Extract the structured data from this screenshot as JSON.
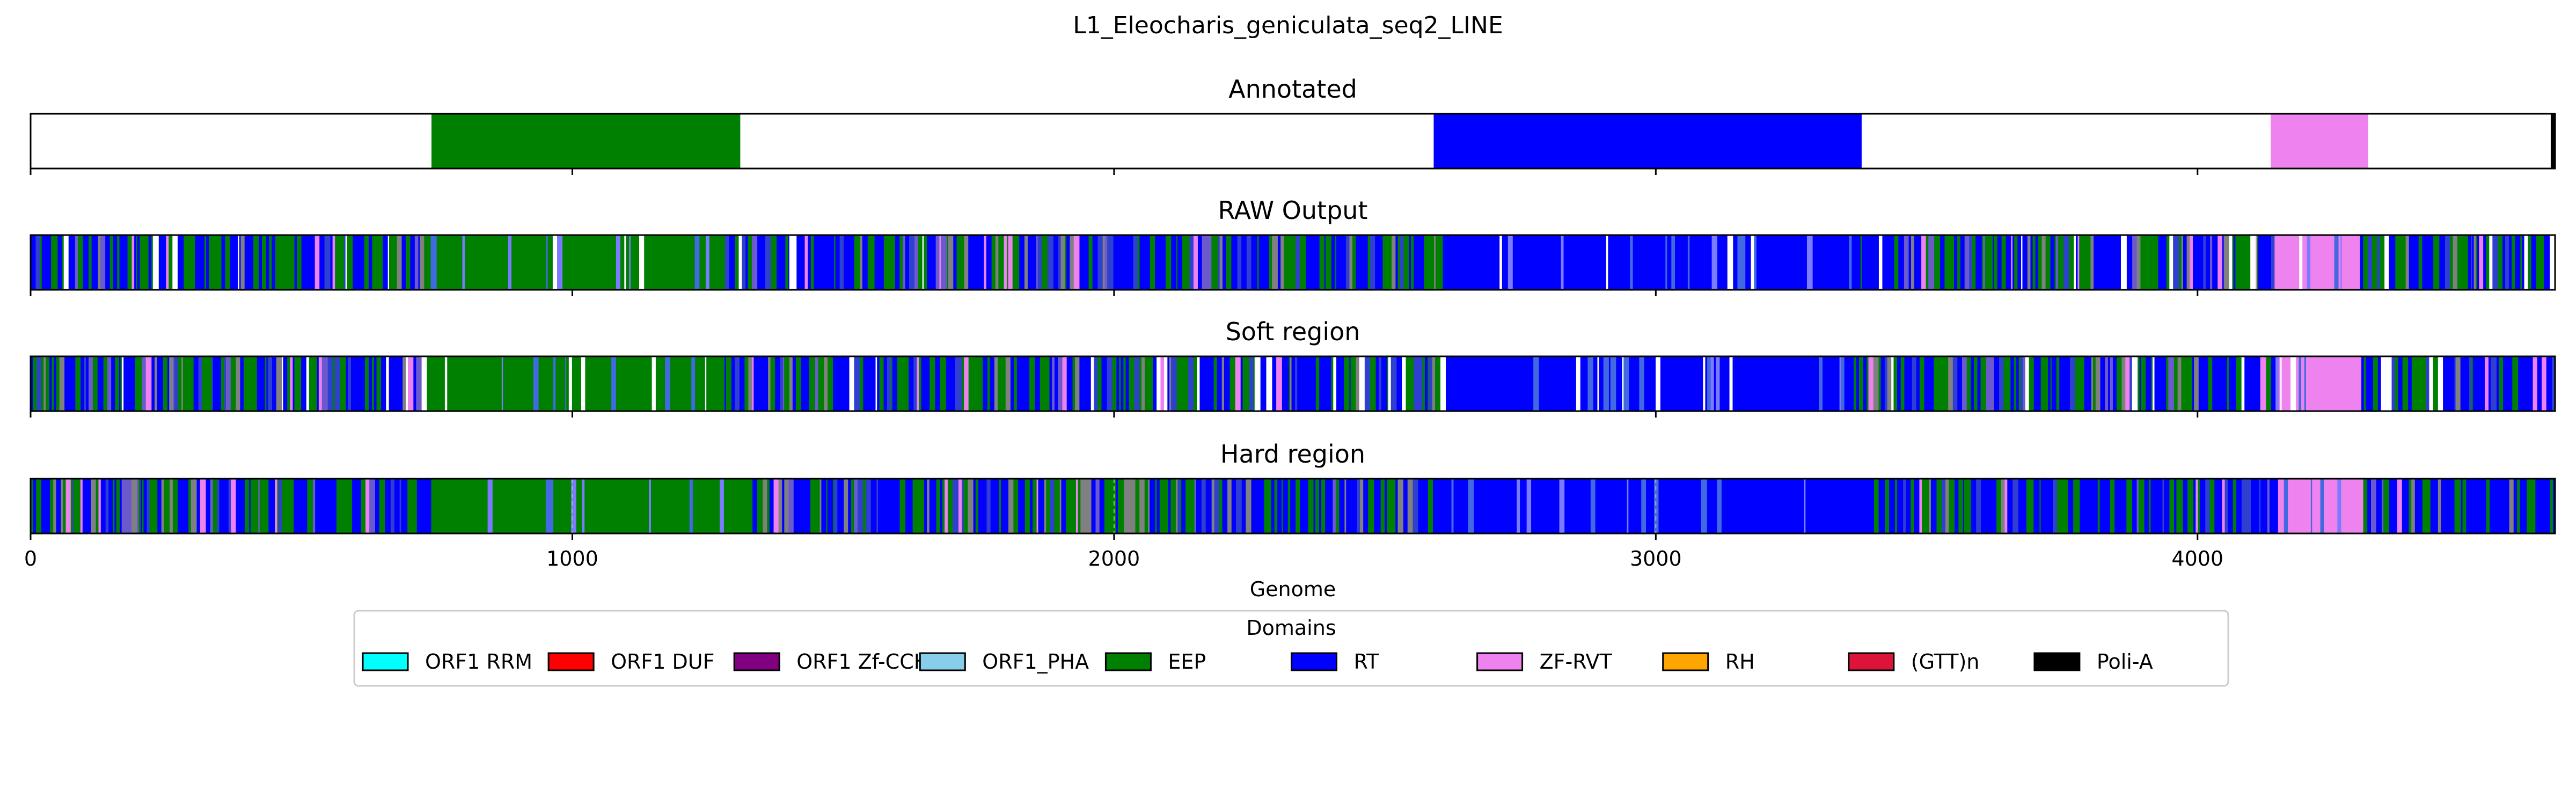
{
  "chart_data": {
    "type": "genome-track",
    "title": "L1_Eleocharis_geniculata_seq2_LINE",
    "xlabel": "Genome",
    "xlim": [
      0,
      4660
    ],
    "xticks": [
      0,
      1000,
      2000,
      3000,
      4000
    ],
    "xtick_labels": [
      "0",
      "1000",
      "2000",
      "3000",
      "4000"
    ],
    "legend": {
      "title": "Domains",
      "position": "bottom-center",
      "entries": [
        {
          "name": "ORF1 RRM",
          "color": "#00ffff"
        },
        {
          "name": "ORF1 DUF",
          "color": "#ff0000"
        },
        {
          "name": "ORF1 Zf-CCHC",
          "color": "#800080"
        },
        {
          "name": "ORF1_PHA",
          "color": "#87ceeb"
        },
        {
          "name": "EEP",
          "color": "#008000"
        },
        {
          "name": "RT",
          "color": "#0000ff"
        },
        {
          "name": "ZF-RVT",
          "color": "#ee82ee"
        },
        {
          "name": "RH",
          "color": "#ffa500"
        },
        {
          "name": "(GTT)n",
          "color": "#dc143c"
        },
        {
          "name": "Poli-A",
          "color": "#000000"
        }
      ]
    },
    "tracks": [
      {
        "title": "Annotated",
        "mode": "clean",
        "segments": [
          {
            "domain": "EEP",
            "start": 740,
            "end": 1310
          },
          {
            "domain": "RT",
            "start": 2590,
            "end": 3380
          },
          {
            "domain": "ZF-RVT",
            "start": 4135,
            "end": 4315
          },
          {
            "domain": "Poli-A",
            "start": 4652,
            "end": 4660
          }
        ]
      },
      {
        "title": "RAW Output",
        "mode": "noisy",
        "seed": 11,
        "gaps": true,
        "blocks": [
          {
            "domain": "EEP",
            "start": 725,
            "end": 1280
          },
          {
            "domain": "RT",
            "start": 2600,
            "end": 3360
          },
          {
            "domain": "ZF-RVT",
            "start": 4140,
            "end": 4300
          }
        ]
      },
      {
        "title": "Soft region",
        "mode": "noisy",
        "seed": 23,
        "gaps": true,
        "blocks": [
          {
            "domain": "EEP",
            "start": 725,
            "end": 1280
          },
          {
            "domain": "RT",
            "start": 2600,
            "end": 3360
          },
          {
            "domain": "ZF-RVT",
            "start": 4140,
            "end": 4300
          }
        ]
      },
      {
        "title": "Hard region",
        "mode": "noisy",
        "seed": 37,
        "gaps": false,
        "blocks": [
          {
            "domain": "EEP",
            "start": 735,
            "end": 1305
          },
          {
            "domain": "RT",
            "start": 2580,
            "end": 3385
          },
          {
            "domain": "ZF-RVT",
            "start": 4145,
            "end": 4305
          }
        ]
      }
    ]
  }
}
